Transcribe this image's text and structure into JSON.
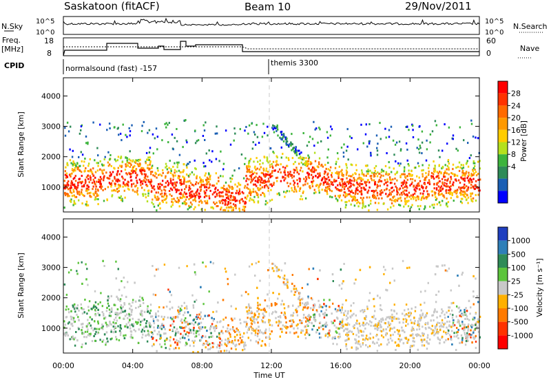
{
  "header": {
    "title": "Saskatoon (fitACF)",
    "beam": "Beam 10",
    "date": "29/Nov/2011"
  },
  "top_panels": {
    "nsky_label": "N.Sky",
    "nsky_ticks": [
      "10^5",
      "10^0"
    ],
    "nsearch_label": "N.Search",
    "nsearch_ticks": [
      "10^5",
      "10^0"
    ],
    "freq_label_1": "Freq.",
    "freq_label_2": "[MHz]",
    "freq_ticks": [
      "18",
      "8"
    ],
    "nave_label": "Nave",
    "nave_ticks": [
      "60",
      "0"
    ],
    "cpid_label": "CPID",
    "cpid_entries": [
      {
        "text": "normalsound (fast) -157",
        "start_hour": 0
      },
      {
        "text": "themis 3300",
        "start_hour": 12
      }
    ]
  },
  "chart_data": [
    {
      "type": "heatmap",
      "name": "power",
      "ylabel": "Slant Range [km]",
      "ylim": [
        180,
        4600
      ],
      "yticks": [
        1000,
        2000,
        3000,
        4000
      ],
      "xlim": [
        0,
        24
      ],
      "colorbar": {
        "label": "Power [dB]",
        "ticks": [
          "28",
          "24",
          "20",
          "16",
          "12",
          "8",
          "4"
        ],
        "colors": [
          "#ff0000",
          "#ff3300",
          "#ff6a00",
          "#ff9900",
          "#ffcc00",
          "#b4e01e",
          "#3cb43c",
          "#2e8b57",
          "#1a5fb4",
          "#0000ff"
        ]
      }
    },
    {
      "type": "heatmap",
      "name": "velocity",
      "ylabel": "Slant Range [km]",
      "ylim": [
        180,
        4600
      ],
      "yticks": [
        1000,
        2000,
        3000,
        4000
      ],
      "xlim": [
        0,
        24
      ],
      "colorbar": {
        "label": "Velocity [m s⁻¹]",
        "ticks": [
          "1000",
          "500",
          "100",
          "25",
          "-25",
          "-100",
          "-500",
          "-1000"
        ],
        "colors": [
          "#1f3fbf",
          "#2e7fb8",
          "#2e8b57",
          "#5cc43c",
          "#c8c8c8",
          "#ffb000",
          "#ff7a00",
          "#ff3300",
          "#ff0000"
        ]
      }
    }
  ],
  "time_axis": {
    "label": "Time UT",
    "ticks": [
      "00:00",
      "04:00",
      "08:00",
      "12:00",
      "16:00",
      "20:00",
      "00:00"
    ],
    "tick_hours": [
      0,
      4,
      8,
      12,
      16,
      20,
      24
    ]
  },
  "colors": {
    "data_bg": "#ffffff",
    "dashed_line": "#c8c8c8"
  }
}
